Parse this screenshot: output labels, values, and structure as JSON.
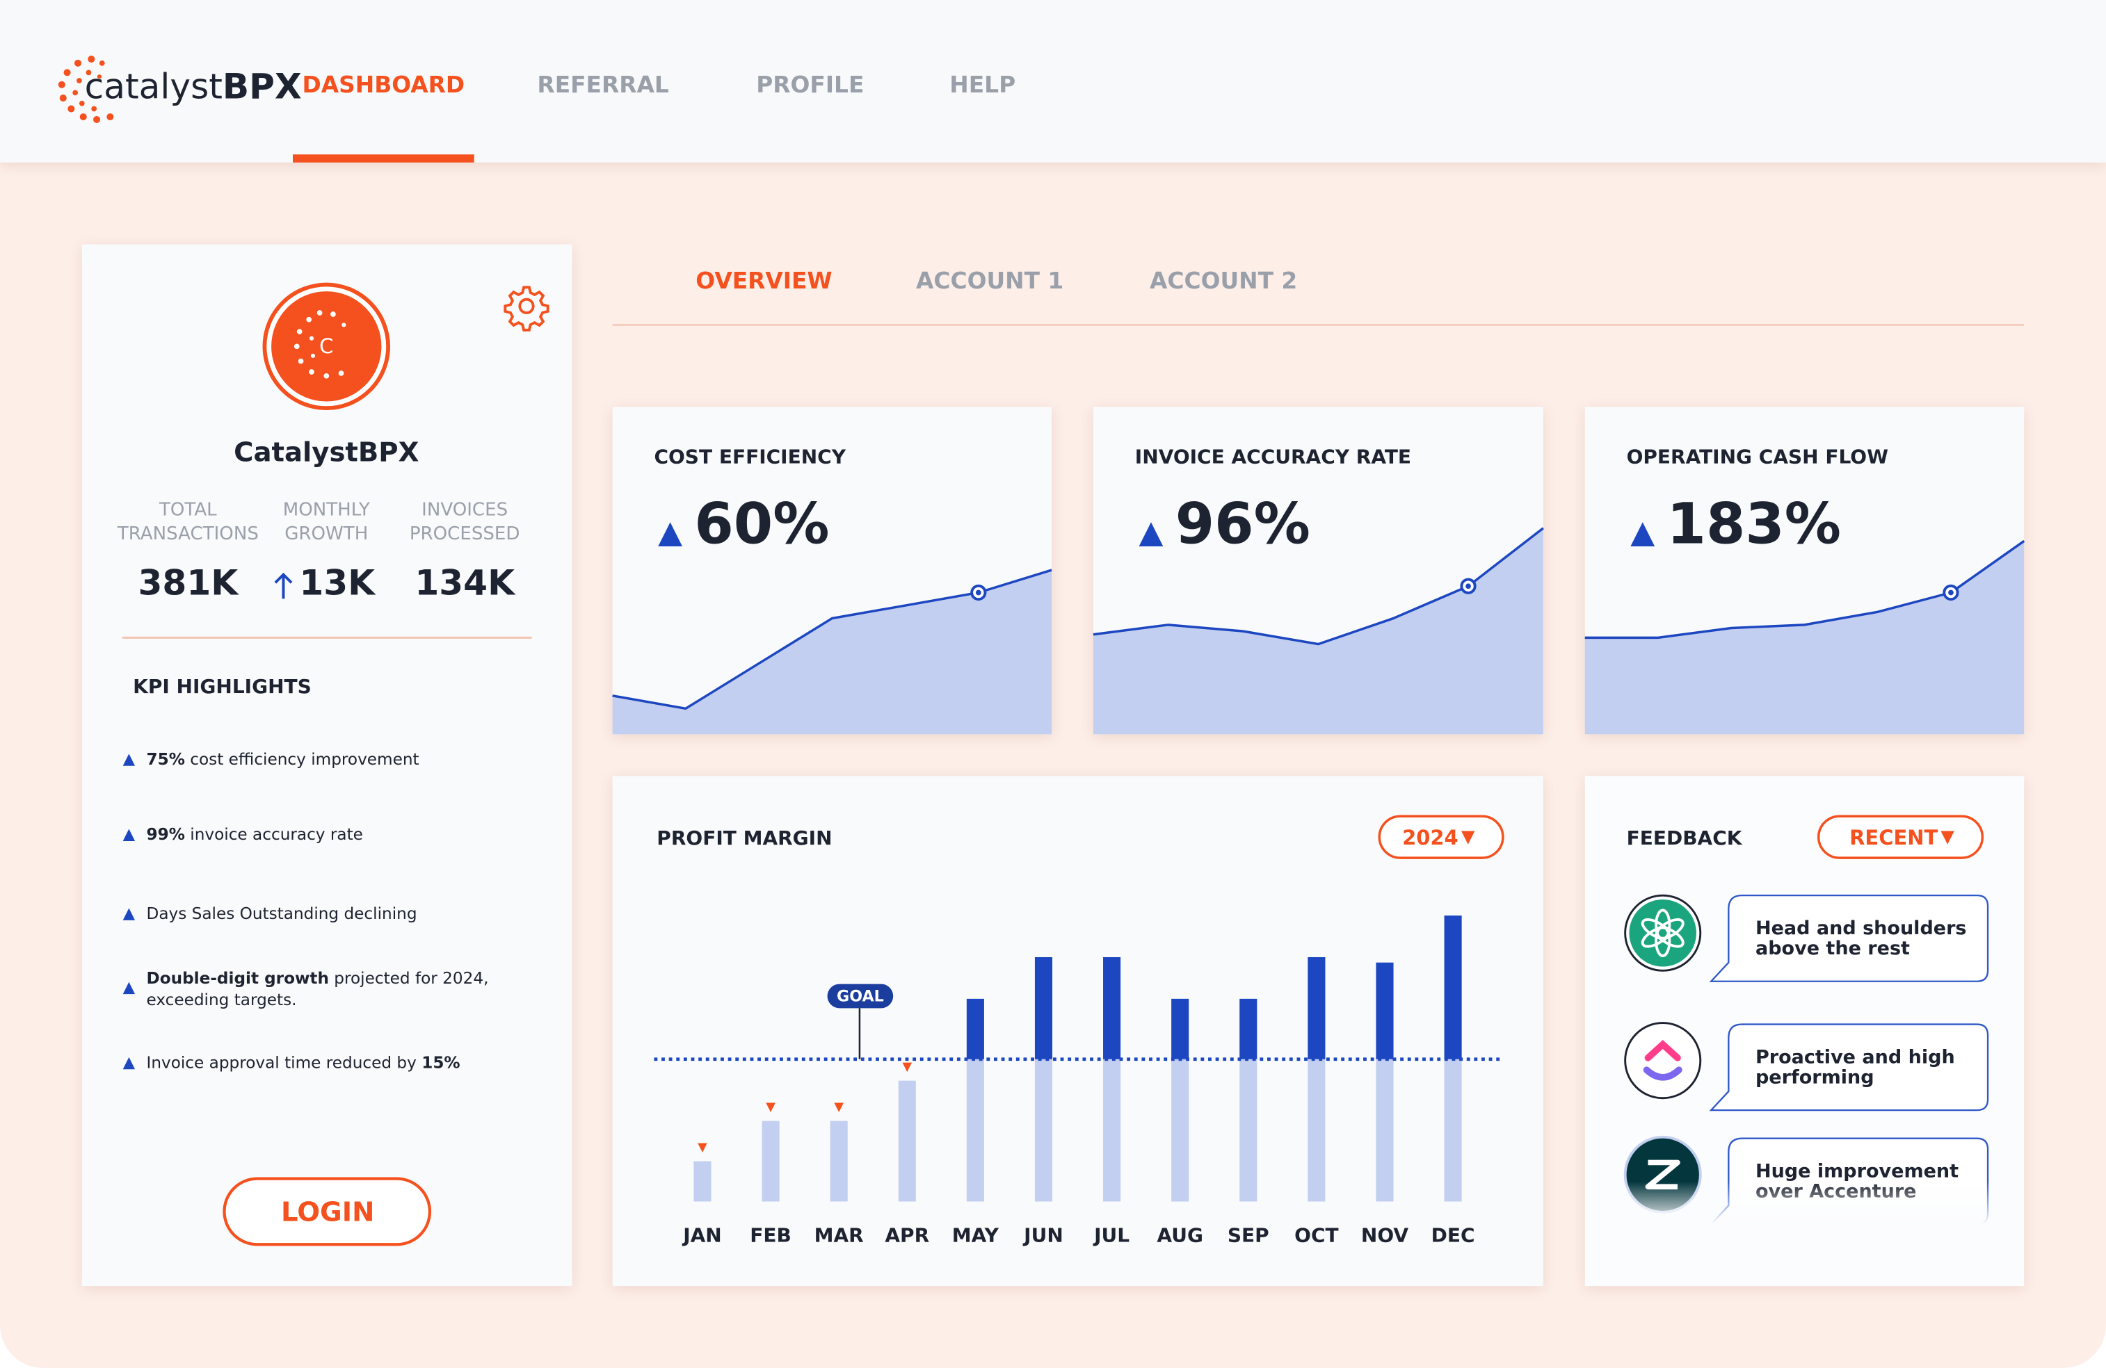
{
  "nav": {
    "logo": {
      "light": "catalyst",
      "bold": "BPX"
    },
    "tabs": [
      "DASHBOARD",
      "REFERRAL",
      "PROFILE",
      "HELP"
    ],
    "active": 0
  },
  "profile": {
    "avatar_letter": "C",
    "name": "CatalystBPX",
    "stats": [
      {
        "label": [
          "TOTAL",
          "TRANSACTIONS"
        ],
        "value": "381K"
      },
      {
        "label": [
          "MONTHLY",
          "GROWTH"
        ],
        "value": "13K",
        "trend": "up"
      },
      {
        "label": [
          "INVOICES",
          "PROCESSED"
        ],
        "value": "134K"
      }
    ],
    "kpi_title": "KPI HIGHLIGHTS",
    "highlights": [
      {
        "lines": [
          [
            {
              "text": "75%",
              "bold": true
            },
            {
              "text": " cost efficiency improvement"
            }
          ]
        ]
      },
      {
        "lines": [
          [
            {
              "text": "99%",
              "bold": true
            },
            {
              "text": " invoice accuracy rate"
            }
          ]
        ]
      },
      {
        "lines": [
          [
            {
              "text": "Days Sales Outstanding declining"
            }
          ]
        ]
      },
      {
        "lines": [
          [
            {
              "text": "Double-digit growth",
              "bold": true
            },
            {
              "text": " projected for 2024,"
            }
          ],
          [
            {
              "text": "exceeding targets."
            }
          ]
        ]
      },
      {
        "lines": [
          [
            {
              "text": "Invoice approval time reduced by "
            },
            {
              "text": "15%",
              "bold": true
            }
          ]
        ]
      }
    ],
    "login": "LOGIN"
  },
  "subtabs": {
    "tabs": [
      "OVERVIEW",
      "ACCOUNT 1",
      "ACCOUNT 2"
    ],
    "active": 0
  },
  "metrics": [
    {
      "title": "COST EFFICIENCY",
      "value": "60%",
      "trend": {
        "type": "area",
        "values": [
          12,
          8,
          22,
          36,
          40,
          44,
          51
        ],
        "highlight": 5,
        "ylim": [
          0,
          100
        ]
      }
    },
    {
      "title": "INVOICE ACCURACY RATE",
      "value": "96%",
      "trend": {
        "type": "area",
        "values": [
          31,
          34,
          32,
          28,
          36,
          46,
          64
        ],
        "highlight": 5,
        "ylim": [
          0,
          100
        ]
      }
    },
    {
      "title": "OPERATING CASH FLOW",
      "value": "183%",
      "trend": {
        "type": "area",
        "values": [
          30,
          30,
          33,
          34,
          38,
          44,
          60
        ],
        "highlight": 5,
        "ylim": [
          0,
          100
        ]
      }
    }
  ],
  "chart_data": {
    "type": "bar",
    "title": "PROFIT MARGIN",
    "year": "2024",
    "goal_label": "GOAL",
    "goal": 106,
    "categories": [
      "JAN",
      "FEB",
      "MAR",
      "APR",
      "MAY",
      "JUN",
      "JUL",
      "AUG",
      "SEP",
      "OCT",
      "NOV",
      "DEC"
    ],
    "values": [
      30,
      60,
      60,
      90,
      151,
      182,
      182,
      151,
      151,
      182,
      178,
      213
    ],
    "ylim": [
      0,
      220
    ],
    "color": "#c3cff0",
    "above_goal_color": "#1d47c1"
  },
  "feedback": {
    "title": "FEEDBACK",
    "filter": "RECENT",
    "items": [
      {
        "source": "chatgpt",
        "text": [
          "Head and shoulders",
          "above the rest"
        ]
      },
      {
        "source": "clickup",
        "text": [
          "Proactive and high",
          "performing"
        ]
      },
      {
        "source": "zendesk",
        "text": [
          "Huge improvement",
          "over Accenture"
        ]
      }
    ]
  }
}
